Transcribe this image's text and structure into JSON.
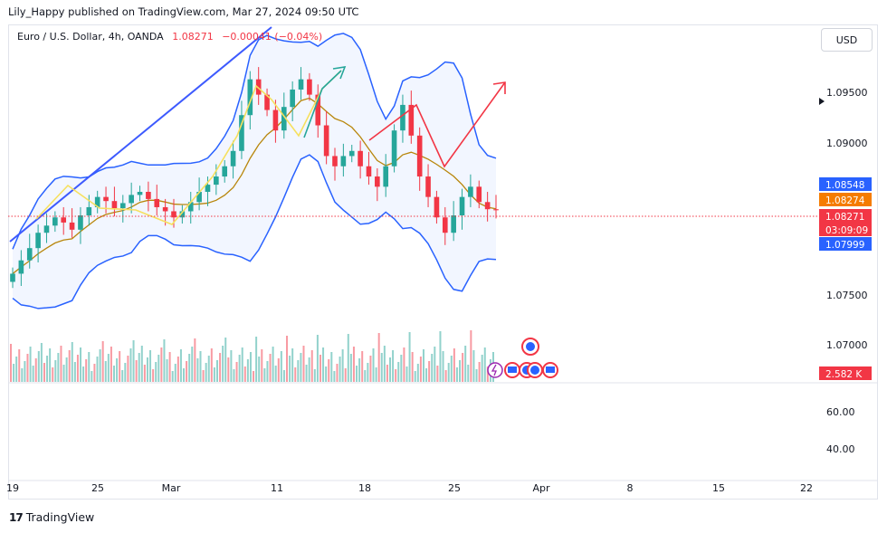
{
  "header": {
    "publish_line": "Lily_Happy published on TradingView.com, Mar 27, 2024 09:50 UTC"
  },
  "legend": {
    "symbol": "Euro / U.S. Dollar, 4h, OANDA",
    "price": "1.08271",
    "change": "−0.00041 (−0.04%)"
  },
  "currency": "USD",
  "footer": {
    "logo_mark": "17",
    "brand": "TradingView"
  },
  "price_axis": {
    "labels": [
      "1.09500",
      "1.09000",
      "1.07500",
      "1.07000"
    ],
    "tags": [
      {
        "text": "1.08548",
        "color": "#2962ff"
      },
      {
        "text": "1.08274",
        "color": "#f57c00"
      },
      {
        "text": "1.08271",
        "color": "#f23645"
      },
      {
        "text": "03:09:09",
        "color": "#f23645"
      },
      {
        "text": "1.07999",
        "color": "#2962ff"
      }
    ]
  },
  "volume_axis": {
    "tag": "2.582 K",
    "tag_color": "#f23645"
  },
  "osc_axis": {
    "labels": [
      "60.00",
      "40.00"
    ]
  },
  "time_axis": {
    "labels": [
      "19",
      "25",
      "Mar",
      "11",
      "18",
      "25",
      "Apr",
      "8",
      "15",
      "22"
    ]
  },
  "colors": {
    "up": "#26a69a",
    "down": "#f23645",
    "band": "#2962ff",
    "mid": "#b8860b",
    "trend": "#3d5afe",
    "zigzag": "#f6e05e"
  },
  "chart_data": {
    "type": "candlestick",
    "symbol": "EURUSD",
    "timeframe": "4h",
    "ylim": [
      1.0661,
      1.1006
    ],
    "last_price": 1.08271,
    "upper_band_last": 1.08548,
    "middle_band_last": 1.08274,
    "lower_band_last": 1.07999,
    "close": [
      1.0765,
      1.0778,
      1.079,
      1.0805,
      1.0812,
      1.082,
      1.0815,
      1.0808,
      1.0822,
      1.083,
      1.084,
      1.0836,
      1.0829,
      1.0834,
      1.0842,
      1.0845,
      1.0838,
      1.083,
      1.0826,
      1.082,
      1.0826,
      1.0835,
      1.0845,
      1.0852,
      1.086,
      1.087,
      1.0885,
      1.092,
      1.0955,
      1.094,
      1.0925,
      1.0905,
      1.0928,
      1.0945,
      1.0955,
      1.094,
      1.091,
      1.088,
      1.087,
      1.088,
      1.0885,
      1.087,
      1.086,
      1.085,
      1.087,
      1.0905,
      1.093,
      1.09,
      1.086,
      1.084,
      1.082,
      1.0805,
      1.0822,
      1.084,
      1.085,
      1.0835,
      1.0828,
      1.0827
    ],
    "volume_axis_label": "2.582 K",
    "oscillator_levels": [
      60,
      40
    ]
  }
}
